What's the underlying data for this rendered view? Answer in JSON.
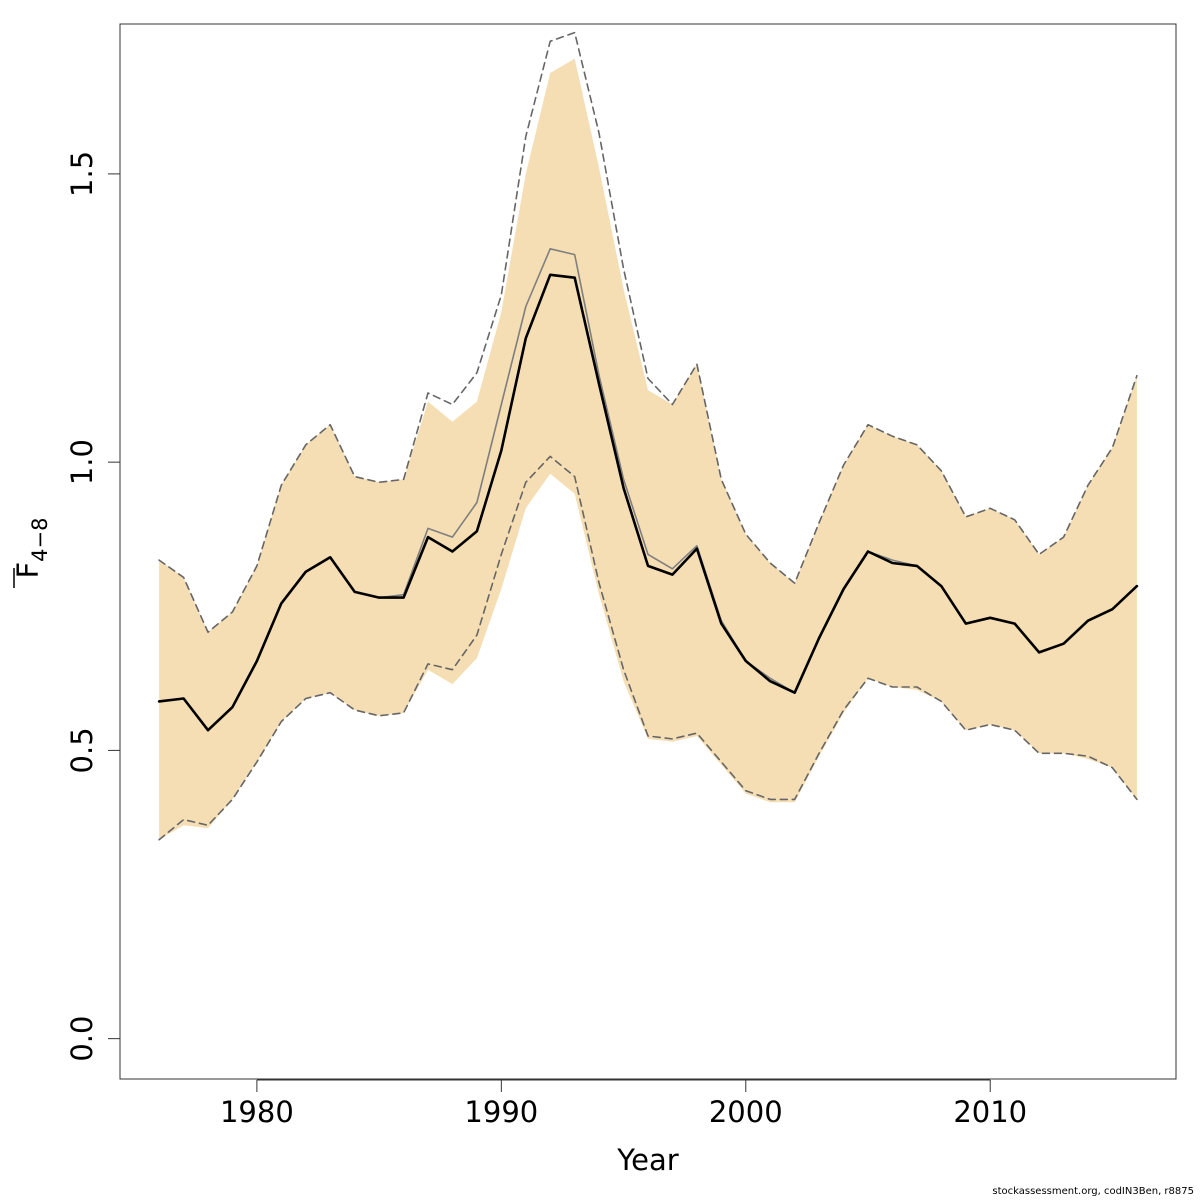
{
  "chart_data": {
    "type": "line",
    "xlabel": "Year",
    "ylabel": {
      "main": "F",
      "subscript": "4−8"
    },
    "xlim": [
      1974.4,
      2017.6
    ],
    "ylim": [
      -0.07,
      1.76
    ],
    "xticks": [
      1980,
      1990,
      2000,
      2010
    ],
    "yticks": [
      0.0,
      0.5,
      1.0,
      1.5
    ],
    "ytick_labels": [
      "0.0",
      "0.5",
      "1.0",
      "1.5"
    ],
    "x": [
      1976,
      1977,
      1978,
      1979,
      1980,
      1981,
      1982,
      1983,
      1984,
      1985,
      1986,
      1987,
      1988,
      1989,
      1990,
      1991,
      1992,
      1993,
      1994,
      1995,
      1996,
      1997,
      1998,
      1999,
      2000,
      2001,
      2002,
      2003,
      2004,
      2005,
      2006,
      2007,
      2008,
      2009,
      2010,
      2011,
      2012,
      2013,
      2014,
      2015,
      2016
    ],
    "band": {
      "color": "#f5deb3",
      "lower": [
        0.345,
        0.37,
        0.365,
        0.415,
        0.48,
        0.55,
        0.59,
        0.6,
        0.57,
        0.56,
        0.565,
        0.64,
        0.615,
        0.66,
        0.78,
        0.92,
        0.98,
        0.945,
        0.77,
        0.62,
        0.52,
        0.515,
        0.525,
        0.475,
        0.425,
        0.41,
        0.41,
        0.49,
        0.565,
        0.625,
        0.61,
        0.605,
        0.585,
        0.535,
        0.545,
        0.535,
        0.495,
        0.495,
        0.485,
        0.47,
        0.415
      ],
      "upper": [
        0.83,
        0.8,
        0.705,
        0.74,
        0.82,
        0.96,
        1.03,
        1.065,
        0.975,
        0.965,
        0.97,
        1.105,
        1.07,
        1.105,
        1.26,
        1.5,
        1.675,
        1.7,
        1.51,
        1.3,
        1.125,
        1.1,
        1.17,
        0.97,
        0.875,
        0.825,
        0.79,
        0.895,
        0.995,
        1.065,
        1.045,
        1.03,
        0.985,
        0.905,
        0.92,
        0.9,
        0.84,
        0.87,
        0.96,
        1.025,
        1.15
      ]
    },
    "series": [
      {
        "color": "#000000",
        "style": "solid",
        "width": 2.6,
        "values": [
          0.585,
          0.59,
          0.535,
          0.575,
          0.655,
          0.755,
          0.81,
          0.835,
          0.775,
          0.765,
          0.765,
          0.87,
          0.845,
          0.88,
          1.02,
          1.215,
          1.325,
          1.32,
          1.135,
          0.955,
          0.82,
          0.805,
          0.85,
          0.72,
          0.655,
          0.62,
          0.6,
          0.695,
          0.78,
          0.845,
          0.825,
          0.82,
          0.785,
          0.72,
          0.73,
          0.72,
          0.67,
          0.685,
          0.725,
          0.745,
          0.785
        ]
      },
      {
        "color": "#7f7f7f",
        "style": "solid",
        "width": 1.6,
        "values": [
          0.585,
          0.59,
          0.535,
          0.575,
          0.655,
          0.755,
          0.81,
          0.835,
          0.775,
          0.765,
          0.77,
          0.885,
          0.87,
          0.93,
          1.1,
          1.27,
          1.37,
          1.36,
          1.15,
          0.97,
          0.84,
          0.815,
          0.855,
          0.725,
          0.655,
          0.625,
          0.6,
          0.695,
          0.78,
          0.845,
          0.83,
          0.82,
          0.785,
          0.72,
          0.73,
          0.72,
          0.67,
          0.685,
          0.725,
          0.745,
          0.785
        ]
      },
      {
        "color": "#666666",
        "style": "dashed",
        "width": 1.6,
        "values": [
          0.83,
          0.8,
          0.705,
          0.74,
          0.82,
          0.96,
          1.03,
          1.065,
          0.975,
          0.965,
          0.97,
          1.12,
          1.1,
          1.155,
          1.29,
          1.565,
          1.73,
          1.745,
          1.57,
          1.335,
          1.145,
          1.1,
          1.17,
          0.97,
          0.875,
          0.825,
          0.79,
          0.895,
          0.995,
          1.065,
          1.045,
          1.03,
          0.985,
          0.905,
          0.92,
          0.9,
          0.84,
          0.87,
          0.96,
          1.025,
          1.15
        ]
      },
      {
        "color": "#666666",
        "style": "dashed",
        "width": 1.6,
        "values": [
          0.345,
          0.38,
          0.37,
          0.415,
          0.48,
          0.55,
          0.59,
          0.6,
          0.57,
          0.56,
          0.565,
          0.65,
          0.64,
          0.7,
          0.84,
          0.965,
          1.01,
          0.975,
          0.79,
          0.64,
          0.525,
          0.52,
          0.53,
          0.48,
          0.43,
          0.415,
          0.415,
          0.495,
          0.57,
          0.625,
          0.61,
          0.61,
          0.585,
          0.535,
          0.545,
          0.535,
          0.495,
          0.495,
          0.49,
          0.47,
          0.415
        ]
      }
    ]
  },
  "footer": {
    "credit": "stockassessment.org, codIN3Ben, r8875"
  }
}
